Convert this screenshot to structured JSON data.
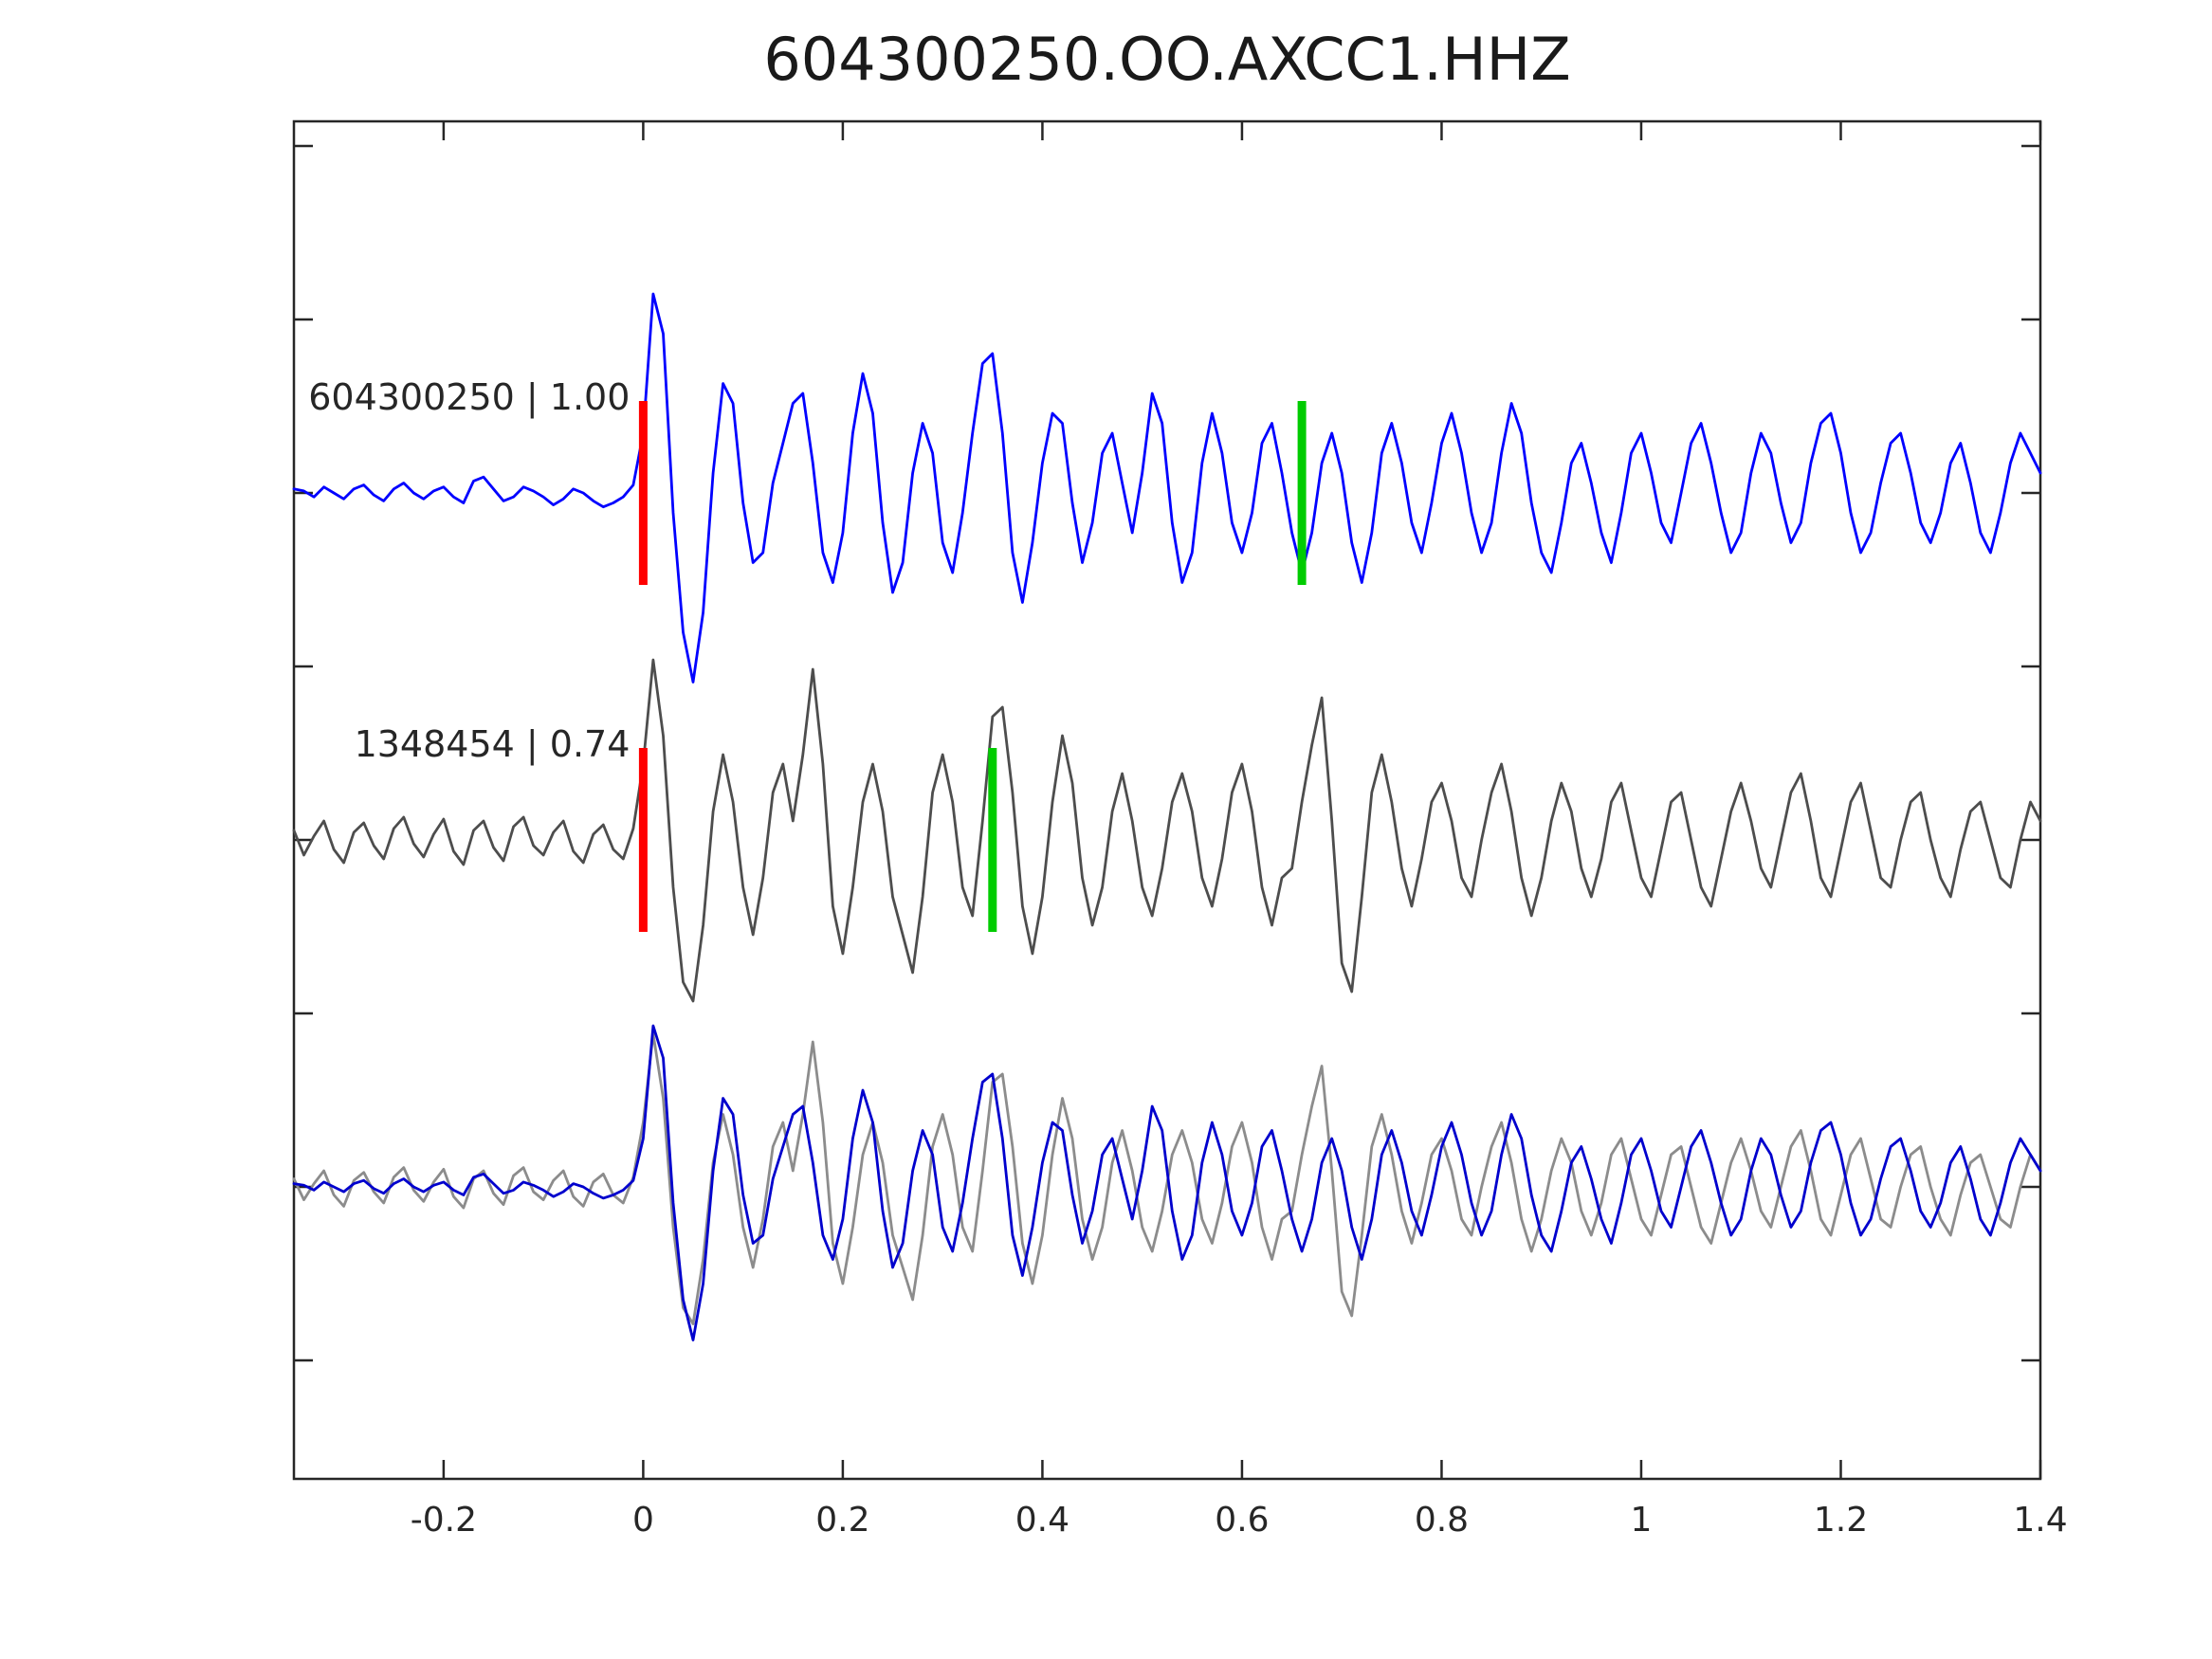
{
  "chart_data": {
    "type": "line",
    "title": "604300250.OO.AXCC1.HHZ",
    "xlabel": "",
    "ylabel": "",
    "xlim": [
      -0.35,
      1.4
    ],
    "x_ticks": [
      -0.2,
      0,
      0.2,
      0.4,
      0.6,
      0.8,
      1,
      1.2,
      1.4
    ],
    "x_tick_labels": [
      "-0.2",
      "0",
      "0.2",
      "0.4",
      "0.6",
      "0.8",
      "1",
      "1.2",
      "1.4"
    ],
    "x0": -0.35,
    "dx": 0.01,
    "grid": false,
    "legend": "none",
    "axis_color": "#262626",
    "colors": {
      "template_blue": "#0000ff",
      "detection_gray": "#4d4d4d",
      "overlay_gray": "#8c8c8c",
      "overlay_blue": "#0000cd",
      "red_pick": "#ff0000",
      "green_pick": "#00cc00"
    },
    "rows": [
      {
        "label": "604300250 | 1.00",
        "traces": [
          {
            "series": "template",
            "color": "#0000ff"
          }
        ],
        "picks": [
          {
            "x": 0,
            "color": "#ff0000",
            "name": "red-pick-template"
          },
          {
            "x": 0.66,
            "color": "#00cc00",
            "name": "green-pick-template"
          }
        ]
      },
      {
        "label": "1348454 | 0.74",
        "traces": [
          {
            "series": "detection",
            "color": "#4d4d4d"
          }
        ],
        "picks": [
          {
            "x": 0,
            "color": "#ff0000",
            "name": "red-pick-detection"
          },
          {
            "x": 0.35,
            "color": "#00cc00",
            "name": "green-pick-detection"
          }
        ]
      },
      {
        "label": "",
        "traces": [
          {
            "series": "detection",
            "color": "#8c8c8c"
          },
          {
            "series": "template",
            "color": "#0000cd"
          }
        ],
        "picks": []
      }
    ],
    "series": {
      "template": {
        "values": [
          0.02,
          0.01,
          -0.02,
          0.03,
          0,
          -0.03,
          0.02,
          0.04,
          -0.01,
          -0.04,
          0.02,
          0.05,
          0,
          -0.03,
          0.01,
          0.03,
          -0.02,
          -0.05,
          0.06,
          0.08,
          0.02,
          -0.04,
          -0.02,
          0.03,
          0.01,
          -0.02,
          -0.06,
          -0.03,
          0.02,
          0,
          -0.04,
          -0.07,
          -0.05,
          -0.02,
          0.04,
          0.3,
          1,
          0.8,
          -0.1,
          -0.7,
          -0.95,
          -0.6,
          0.1,
          0.55,
          0.45,
          -0.05,
          -0.35,
          -0.3,
          0.05,
          0.25,
          0.45,
          0.5,
          0.15,
          -0.3,
          -0.45,
          -0.2,
          0.3,
          0.6,
          0.4,
          -0.15,
          -0.5,
          -0.35,
          0.1,
          0.35,
          0.2,
          -0.25,
          -0.4,
          -0.1,
          0.3,
          0.65,
          0.7,
          0.3,
          -0.3,
          -0.55,
          -0.25,
          0.15,
          0.4,
          0.35,
          -0.05,
          -0.35,
          -0.15,
          0.2,
          0.3,
          0.05,
          -0.2,
          0.1,
          0.5,
          0.35,
          -0.15,
          -0.45,
          -0.3,
          0.15,
          0.4,
          0.2,
          -0.15,
          -0.3,
          -0.1,
          0.25,
          0.35,
          0.1,
          -0.2,
          -0.4,
          -0.2,
          0.15,
          0.3,
          0.1,
          -0.25,
          -0.45,
          -0.2,
          0.2,
          0.35,
          0.15,
          -0.15,
          -0.3,
          -0.05,
          0.25,
          0.4,
          0.2,
          -0.1,
          -0.3,
          -0.15,
          0.2,
          0.45,
          0.3,
          -0.05,
          -0.3,
          -0.4,
          -0.15,
          0.15,
          0.25,
          0.05,
          -0.2,
          -0.35,
          -0.1,
          0.2,
          0.3,
          0.1,
          -0.15,
          -0.25,
          0,
          0.25,
          0.35,
          0.15,
          -0.1,
          -0.3,
          -0.2,
          0.1,
          0.3,
          0.2,
          -0.05,
          -0.25,
          -0.15,
          0.15,
          0.35,
          0.4,
          0.2,
          -0.1,
          -0.3,
          -0.2,
          0.05,
          0.25,
          0.3,
          0.1,
          -0.15,
          -0.25,
          -0.1,
          0.15,
          0.25,
          0.05,
          -0.2,
          -0.3,
          -0.1,
          0.15,
          0.3,
          0.2,
          0.1
        ]
      },
      "detection": {
        "values": [
          0.05,
          -0.08,
          0.02,
          0.1,
          -0.05,
          -0.12,
          0.04,
          0.09,
          -0.03,
          -0.1,
          0.06,
          0.12,
          -0.02,
          -0.09,
          0.03,
          0.11,
          -0.06,
          -0.13,
          0.05,
          0.1,
          -0.04,
          -0.11,
          0.07,
          0.12,
          -0.03,
          -0.08,
          0.04,
          0.1,
          -0.06,
          -0.12,
          0.03,
          0.08,
          -0.05,
          -0.1,
          0.06,
          0.4,
          0.95,
          0.55,
          -0.25,
          -0.75,
          -0.85,
          -0.45,
          0.15,
          0.45,
          0.2,
          -0.25,
          -0.5,
          -0.2,
          0.25,
          0.4,
          0.1,
          0.45,
          0.9,
          0.4,
          -0.35,
          -0.6,
          -0.25,
          0.2,
          0.4,
          0.15,
          -0.3,
          -0.5,
          -0.7,
          -0.3,
          0.25,
          0.45,
          0.2,
          -0.25,
          -0.4,
          0.1,
          0.65,
          0.7,
          0.25,
          -0.35,
          -0.6,
          -0.3,
          0.2,
          0.55,
          0.3,
          -0.2,
          -0.45,
          -0.25,
          0.15,
          0.35,
          0.1,
          -0.25,
          -0.4,
          -0.15,
          0.2,
          0.35,
          0.15,
          -0.2,
          -0.35,
          -0.1,
          0.25,
          0.4,
          0.15,
          -0.25,
          -0.45,
          -0.2,
          -0.15,
          0.2,
          0.5,
          0.75,
          0.1,
          -0.65,
          -0.8,
          -0.3,
          0.25,
          0.45,
          0.2,
          -0.15,
          -0.35,
          -0.1,
          0.2,
          0.3,
          0.1,
          -0.2,
          -0.3,
          0,
          0.25,
          0.4,
          0.15,
          -0.2,
          -0.4,
          -0.2,
          0.1,
          0.3,
          0.15,
          -0.15,
          -0.3,
          -0.1,
          0.2,
          0.3,
          0.05,
          -0.2,
          -0.3,
          -0.05,
          0.2,
          0.25,
          0,
          -0.25,
          -0.35,
          -0.1,
          0.15,
          0.3,
          0.1,
          -0.15,
          -0.25,
          0,
          0.25,
          0.35,
          0.1,
          -0.2,
          -0.3,
          -0.05,
          0.2,
          0.3,
          0.05,
          -0.2,
          -0.25,
          0,
          0.2,
          0.25,
          0,
          -0.2,
          -0.3,
          -0.05,
          0.15,
          0.2,
          0,
          -0.2,
          -0.25,
          0,
          0.2,
          0.1
        ]
      }
    }
  }
}
